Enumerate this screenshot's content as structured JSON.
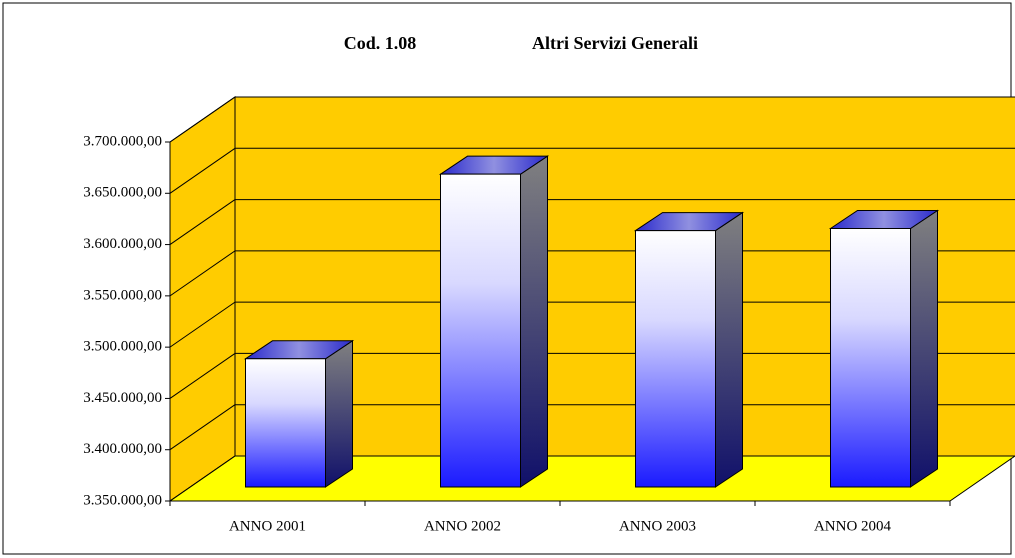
{
  "chart_data": {
    "type": "bar3d",
    "title_code": "Cod. 1.08",
    "title": "Altri Servizi Generali",
    "categories": [
      "ANNO 2001",
      "ANNO 2002",
      "ANNO 2003",
      "ANNO 2004"
    ],
    "values": [
      3475000,
      3655000,
      3600000,
      3602000
    ],
    "ylim": [
      3350000,
      3700000
    ],
    "yticks": [
      {
        "value": 3350000,
        "label": "3.350.000,00"
      },
      {
        "value": 3400000,
        "label": "3.400.000,00"
      },
      {
        "value": 3450000,
        "label": "3.450.000,00"
      },
      {
        "value": 3500000,
        "label": "3.500.000,00"
      },
      {
        "value": 3550000,
        "label": "3.550.000,00"
      },
      {
        "value": 3600000,
        "label": "3.600.000,00"
      },
      {
        "value": 3650000,
        "label": "3.650.000,00"
      },
      {
        "value": 3700000,
        "label": "3.700.000,00"
      }
    ],
    "grid": true,
    "wall_color": "#ffcc00",
    "floor_color": "#ffff00"
  }
}
